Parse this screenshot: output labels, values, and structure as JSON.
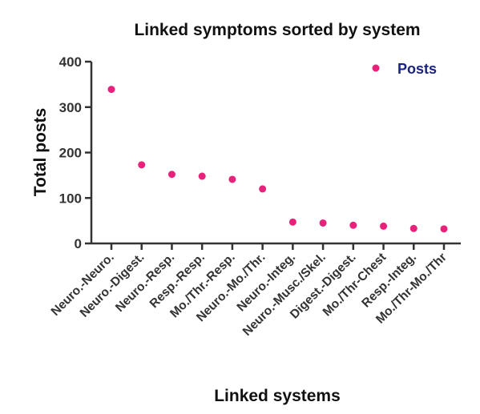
{
  "chart_data": {
    "type": "scatter",
    "title": "Linked symptoms sorted by system",
    "xlabel": "Linked systems",
    "ylabel": "Total  posts",
    "ylim": [
      0,
      400
    ],
    "yticks": [
      0,
      100,
      200,
      300,
      400
    ],
    "grid": false,
    "legend_position": "top-right",
    "categories": [
      "Neuro.-Neuro.",
      "Neuro.-Digest.",
      "Neuro.-Resp.",
      "Resp.-Resp.",
      "Mo./Thr.-Resp.",
      "Neuro.-Mo./Thr.",
      "Neuro.-Integ.",
      "Neuro.-Musc./Skel.",
      "Digest.-Digest.",
      "Mo./Thr-Chest",
      "Resp.-Integ.",
      "Mo./Thr-Mo./Thr"
    ],
    "series": [
      {
        "name": "Posts",
        "color": "#e8217a",
        "values": [
          339,
          173,
          152,
          148,
          141,
          120,
          47,
          45,
          40,
          38,
          33,
          32
        ]
      }
    ],
    "legend_text_color": "#1a237e",
    "axis_color": "#333333"
  }
}
